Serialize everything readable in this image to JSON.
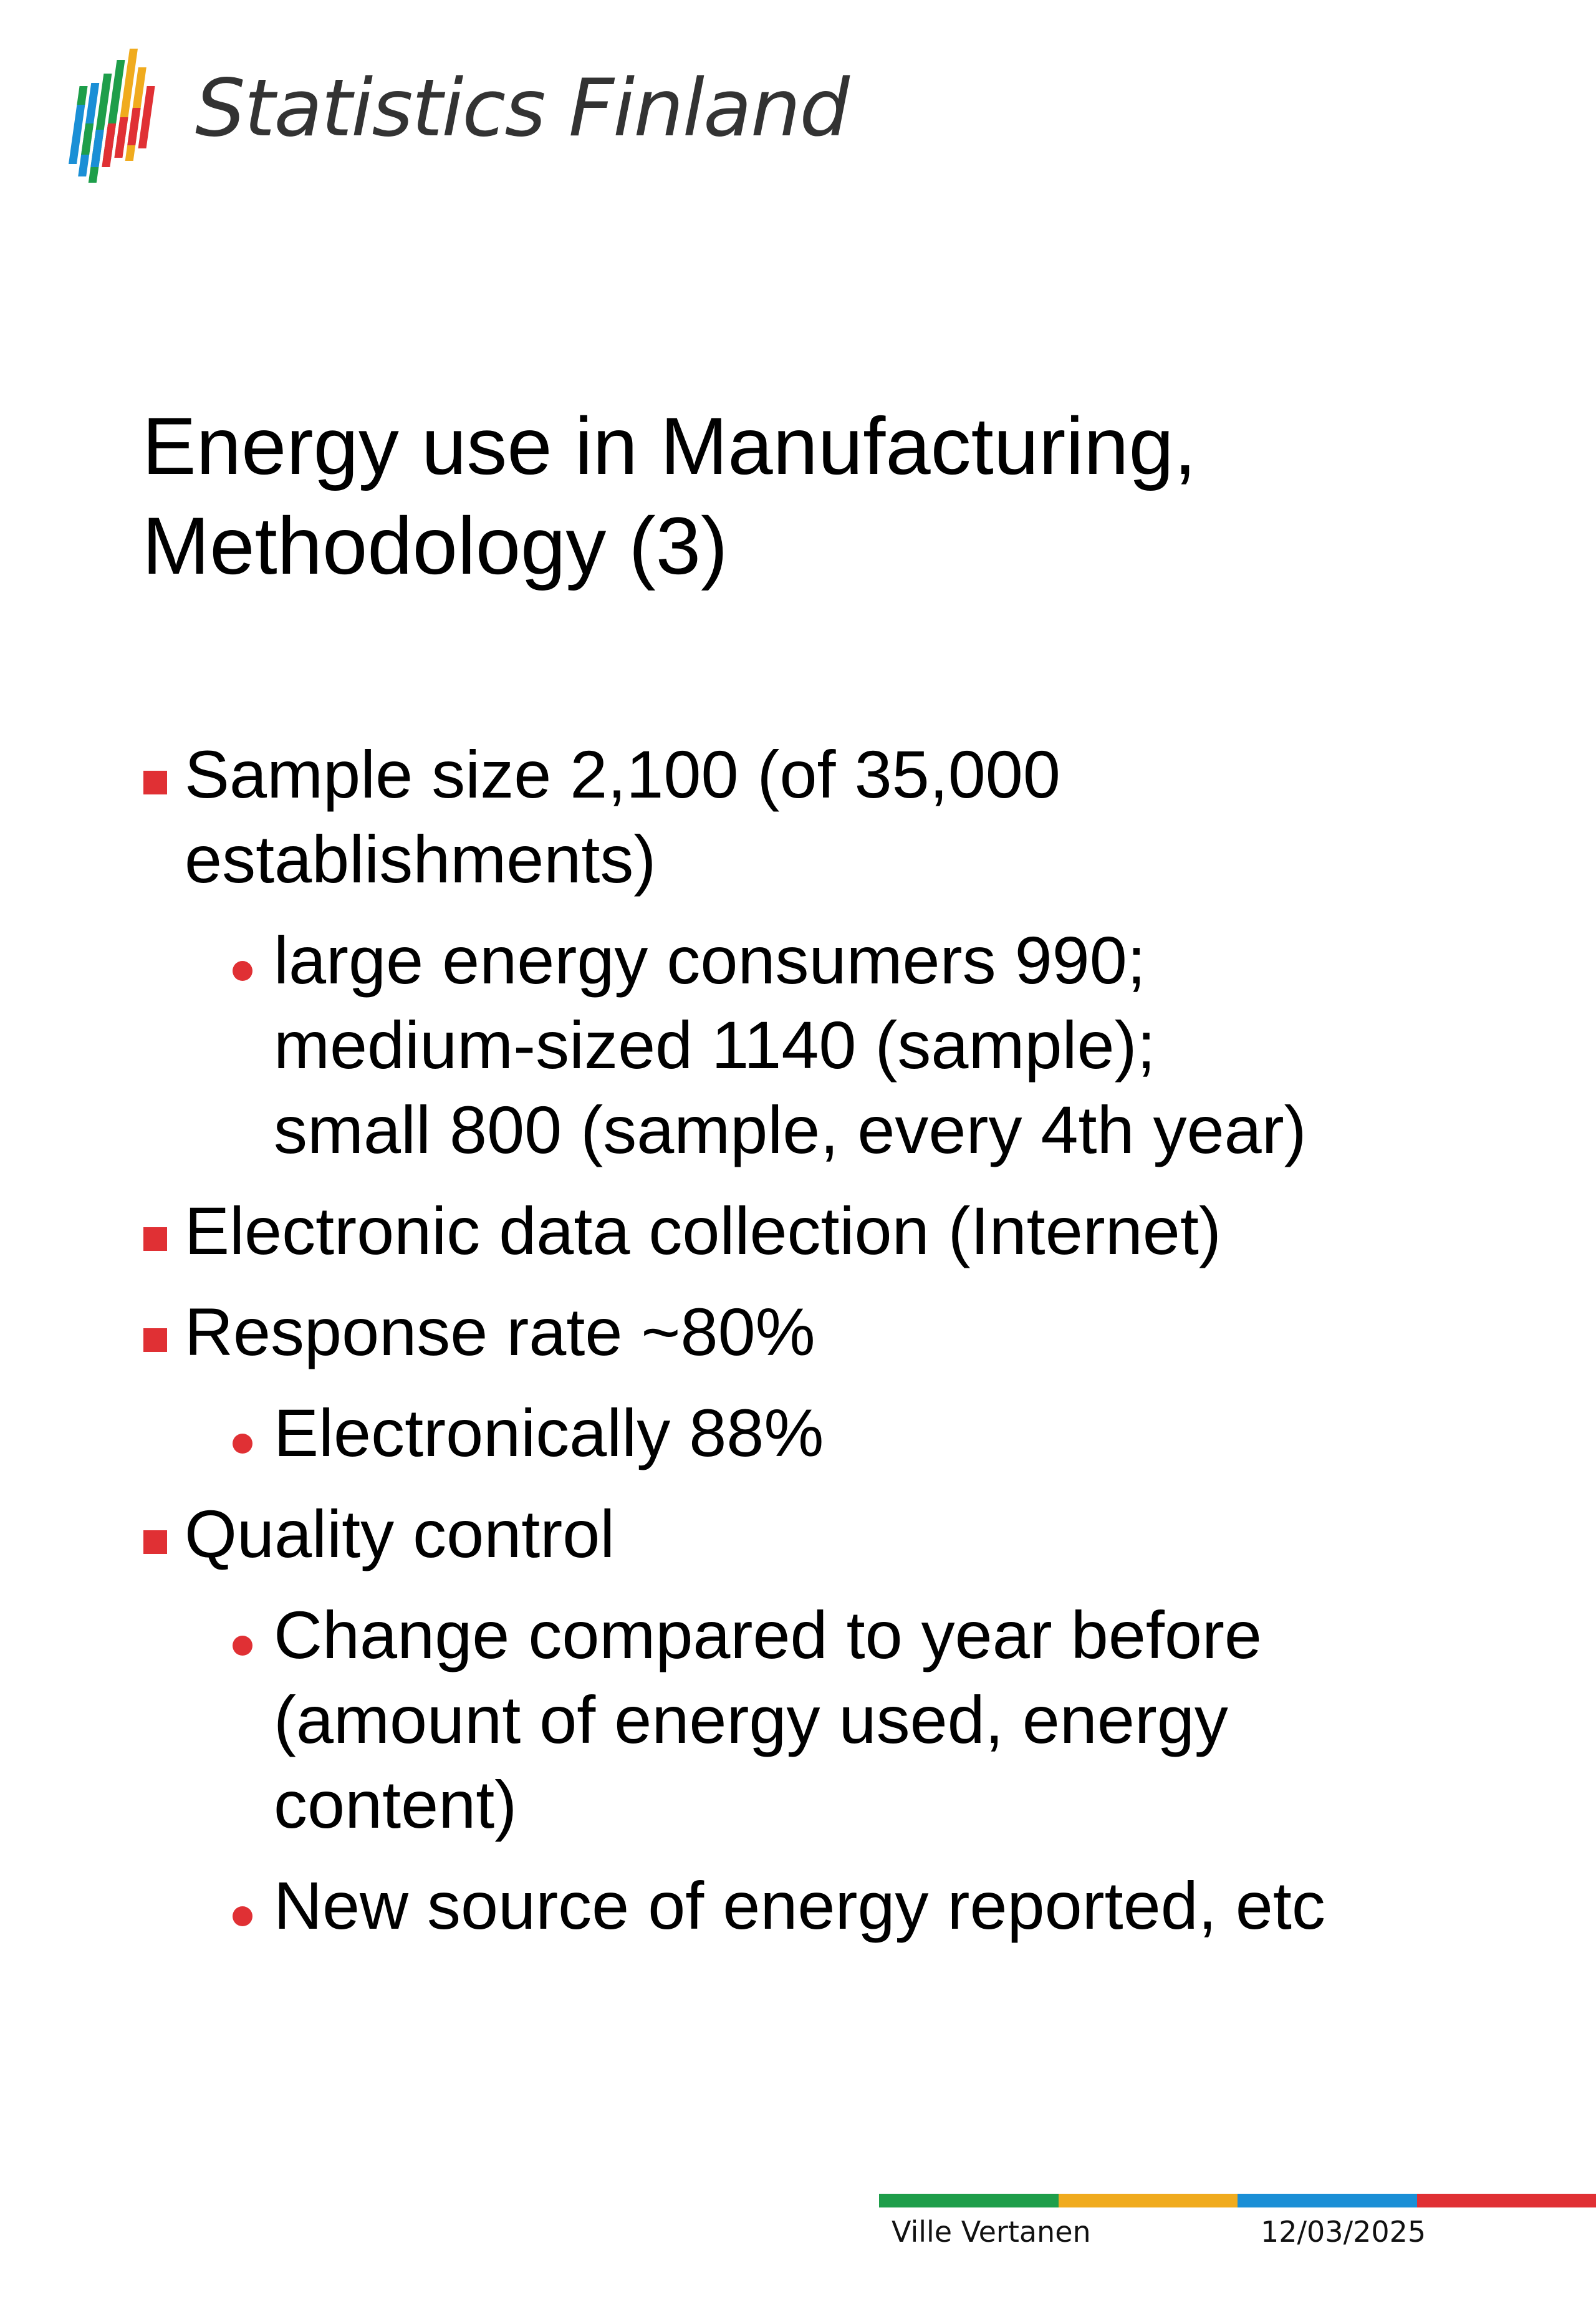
{
  "header": {
    "logo_text": "Statistics Finland",
    "logo_icon": "statistics-finland-logo-icon",
    "logo_colors": [
      "#1e9e4a",
      "#f0ab1e",
      "#1a8fd6",
      "#e03034"
    ]
  },
  "slide": {
    "title_lines": [
      "Energy use in Manufacturing,",
      "Methodology (3)"
    ]
  },
  "bullets": [
    {
      "lines": [
        "Sample size 2,100 (of 35,000",
        "establishments)"
      ],
      "sub": [
        {
          "lines": [
            "large energy consumers 990;",
            "medium-sized 1140 (sample);",
            "small 800 (sample, every 4th year)"
          ]
        }
      ]
    },
    {
      "lines": [
        "Electronic data collection (Internet)"
      ],
      "sub": []
    },
    {
      "lines": [
        "Response rate ~80%"
      ],
      "sub": [
        {
          "lines": [
            "Electronically 88%"
          ]
        }
      ]
    },
    {
      "lines": [
        "Quality control"
      ],
      "sub": [
        {
          "lines": [
            "Change compared to year before",
            "(amount of energy used, energy",
            "content)"
          ]
        },
        {
          "lines": [
            "New source of energy reported, etc"
          ]
        }
      ]
    }
  ],
  "footer": {
    "author": "Ville Vertanen",
    "date": "12/03/2025",
    "bar_colors": [
      "#1e9e4a",
      "#f0ab1e",
      "#1a8fd6",
      "#e03034"
    ]
  },
  "colors": {
    "bullet": "#e03034",
    "logo_text": "#333333"
  }
}
